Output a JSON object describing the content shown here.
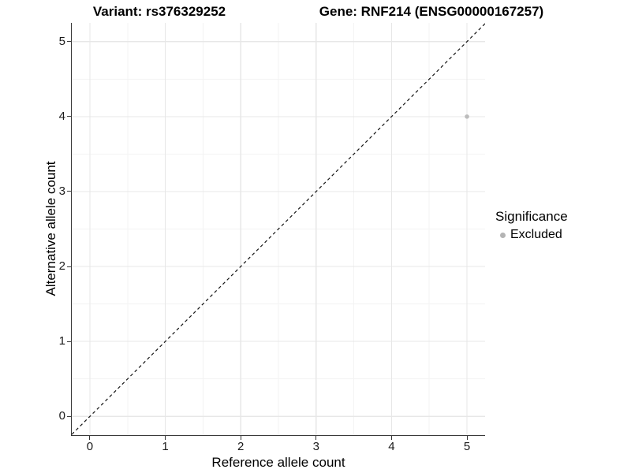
{
  "titles": {
    "variant": "Variant: rs376329252",
    "gene": "Gene: RNF214 (ENSG00000167257)"
  },
  "chart_data": {
    "type": "scatter",
    "title_left": "Variant: rs376329252",
    "title_right": "Gene: RNF214 (ENSG00000167257)",
    "xlabel": "Reference allele count",
    "ylabel": "Alternative allele count",
    "xlim": [
      -0.24,
      5.24
    ],
    "ylim": [
      -0.25,
      5.25
    ],
    "x_ticks": [
      0,
      1,
      2,
      3,
      4,
      5
    ],
    "y_ticks": [
      0,
      1,
      2,
      3,
      4,
      5
    ],
    "x_minor_ticks": [
      0.5,
      1.5,
      2.5,
      3.5,
      4.5
    ],
    "y_minor_ticks": [
      0.5,
      1.5,
      2.5,
      3.5,
      4.5
    ],
    "grid": true,
    "identity_line": {
      "slope": 1,
      "intercept": 0,
      "style": "dashed",
      "color": "#141414"
    },
    "series": [
      {
        "name": "Excluded",
        "color": "#bcbcbc",
        "points": [
          {
            "x": 5,
            "y": 4
          }
        ]
      }
    ],
    "legend": {
      "title": "Significance",
      "position": "right",
      "items": [
        {
          "label": "Excluded",
          "color": "#b4b4b4"
        }
      ]
    }
  },
  "colors": {
    "background": "#ffffff",
    "axis_line": "#383838",
    "grid_major": "#e7e7e7",
    "grid_minor": "#f3f3f3",
    "point": "#bcbcbc",
    "legend_key": "#b4b4b4"
  }
}
